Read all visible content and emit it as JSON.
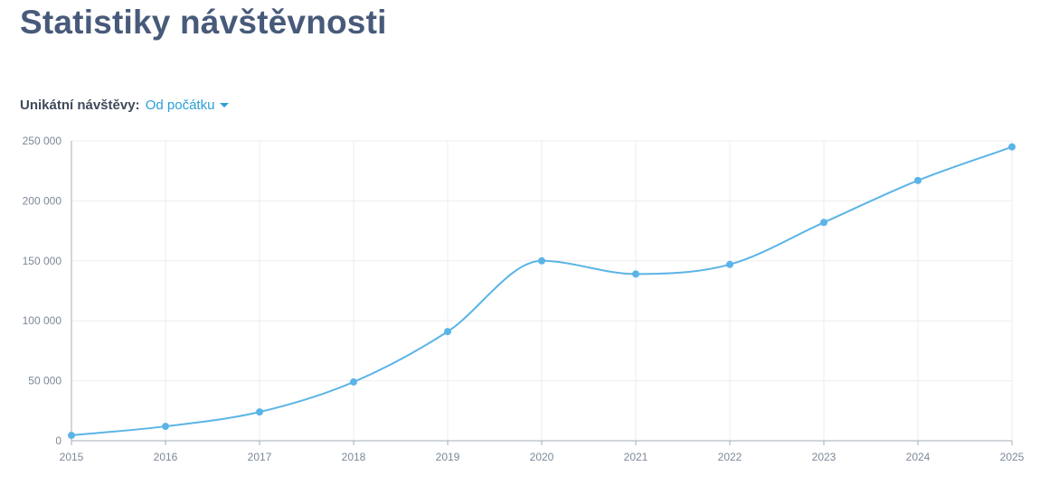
{
  "header": {
    "title": "Statistiky návštěvnosti"
  },
  "filter": {
    "label": "Unikátní návštěvy:",
    "selected": "Od počátku"
  },
  "colors": {
    "line": "#5bb4e6",
    "point": "#5bb4e6",
    "grid": "#eeeeee",
    "axis": "#a5adba",
    "title": "#475a7a",
    "accent": "#2a9fd6"
  },
  "chart_data": {
    "type": "line",
    "title": "",
    "xlabel": "",
    "ylabel": "",
    "x": [
      "2015",
      "2016",
      "2017",
      "2018",
      "2019",
      "2020",
      "2021",
      "2022",
      "2023",
      "2024",
      "2025"
    ],
    "series": [
      {
        "values": [
          4500,
          12000,
          24000,
          49000,
          91000,
          150000,
          139000,
          147000,
          182000,
          217000,
          245000
        ]
      }
    ],
    "ylim": [
      0,
      250000
    ],
    "yticks": [
      0,
      50000,
      100000,
      150000,
      200000,
      250000
    ],
    "ytick_labels": [
      "0",
      "50 000",
      "100 000",
      "150 000",
      "200 000",
      "250 000"
    ],
    "grid": true,
    "curve": "smooth",
    "legend": "none"
  }
}
